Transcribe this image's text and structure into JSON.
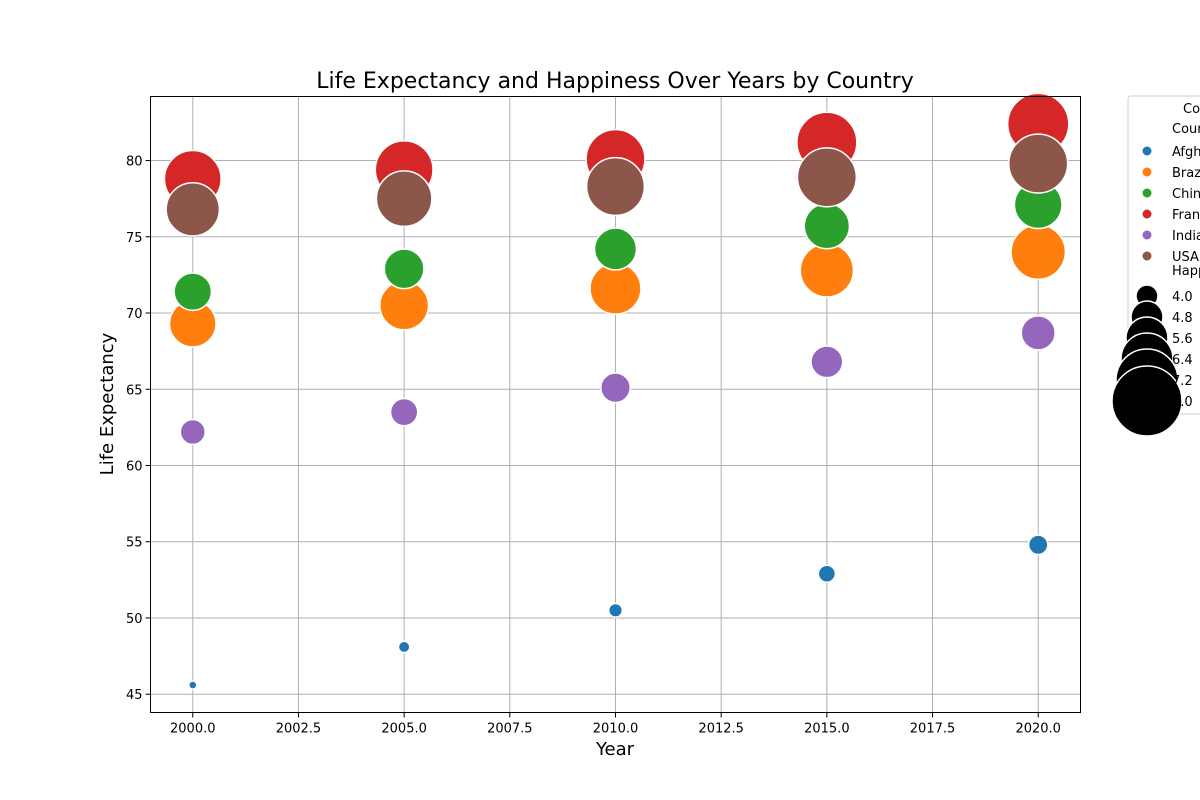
{
  "chart_data": {
    "type": "scatter",
    "title": "Life Expectancy and Happiness Over Years by Country",
    "xlabel": "Year",
    "ylabel": "Life Expectancy",
    "xlim": [
      1999,
      2021
    ],
    "ylim": [
      43.8,
      84.2
    ],
    "xticks": [
      "2000.0",
      "2002.5",
      "2005.0",
      "2007.5",
      "2010.0",
      "2012.5",
      "2015.0",
      "2017.5",
      "2020.0"
    ],
    "yticks": [
      "45",
      "50",
      "55",
      "60",
      "65",
      "70",
      "75",
      "80"
    ],
    "grid": true,
    "legend_placement": "outside-top-right",
    "legend_title": "Co",
    "hue_title": "Coun",
    "size_title": "Happ",
    "size_legend": [
      "4.0",
      "4.8",
      "5.6",
      "6.4",
      "7.2",
      "8.0"
    ],
    "series": [
      {
        "name": "Afgh",
        "color": "#1f77b4",
        "points": [
          {
            "x": 2000,
            "y": 45.6,
            "happiness": 2.6
          },
          {
            "x": 2005,
            "y": 48.1,
            "happiness": 2.9
          },
          {
            "x": 2010,
            "y": 50.5,
            "happiness": 3.1
          },
          {
            "x": 2015,
            "y": 52.9,
            "happiness": 3.4
          },
          {
            "x": 2020,
            "y": 54.8,
            "happiness": 3.6
          }
        ]
      },
      {
        "name": "Braz",
        "color": "#ff7f0e",
        "points": [
          {
            "x": 2000,
            "y": 69.3,
            "happiness": 6.0
          },
          {
            "x": 2005,
            "y": 70.5,
            "happiness": 6.2
          },
          {
            "x": 2010,
            "y": 71.6,
            "happiness": 6.4
          },
          {
            "x": 2015,
            "y": 72.8,
            "happiness": 6.6
          },
          {
            "x": 2020,
            "y": 74.0,
            "happiness": 6.7
          }
        ]
      },
      {
        "name": "Chin",
        "color": "#2ca02c",
        "points": [
          {
            "x": 2000,
            "y": 71.4,
            "happiness": 5.2
          },
          {
            "x": 2005,
            "y": 72.9,
            "happiness": 5.4
          },
          {
            "x": 2010,
            "y": 74.2,
            "happiness": 5.6
          },
          {
            "x": 2015,
            "y": 75.7,
            "happiness": 5.9
          },
          {
            "x": 2020,
            "y": 77.1,
            "happiness": 6.1
          }
        ]
      },
      {
        "name": "Fran",
        "color": "#d62728",
        "points": [
          {
            "x": 2000,
            "y": 78.8,
            "happiness": 6.9
          },
          {
            "x": 2005,
            "y": 79.4,
            "happiness": 7.0
          },
          {
            "x": 2010,
            "y": 80.1,
            "happiness": 7.1
          },
          {
            "x": 2015,
            "y": 81.2,
            "happiness": 7.2
          },
          {
            "x": 2020,
            "y": 82.4,
            "happiness": 7.3
          }
        ]
      },
      {
        "name": "India",
        "color": "#9467bd",
        "points": [
          {
            "x": 2000,
            "y": 62.2,
            "happiness": 4.1
          },
          {
            "x": 2005,
            "y": 63.5,
            "happiness": 4.3
          },
          {
            "x": 2010,
            "y": 65.1,
            "happiness": 4.5
          },
          {
            "x": 2015,
            "y": 66.8,
            "happiness": 4.7
          },
          {
            "x": 2020,
            "y": 68.7,
            "happiness": 4.9
          }
        ]
      },
      {
        "name": "USA",
        "color": "#8c564b",
        "points": [
          {
            "x": 2000,
            "y": 76.8,
            "happiness": 6.6
          },
          {
            "x": 2005,
            "y": 77.5,
            "happiness": 6.8
          },
          {
            "x": 2010,
            "y": 78.3,
            "happiness": 7.0
          },
          {
            "x": 2015,
            "y": 78.9,
            "happiness": 7.1
          },
          {
            "x": 2020,
            "y": 79.8,
            "happiness": 7.1
          }
        ]
      }
    ]
  }
}
